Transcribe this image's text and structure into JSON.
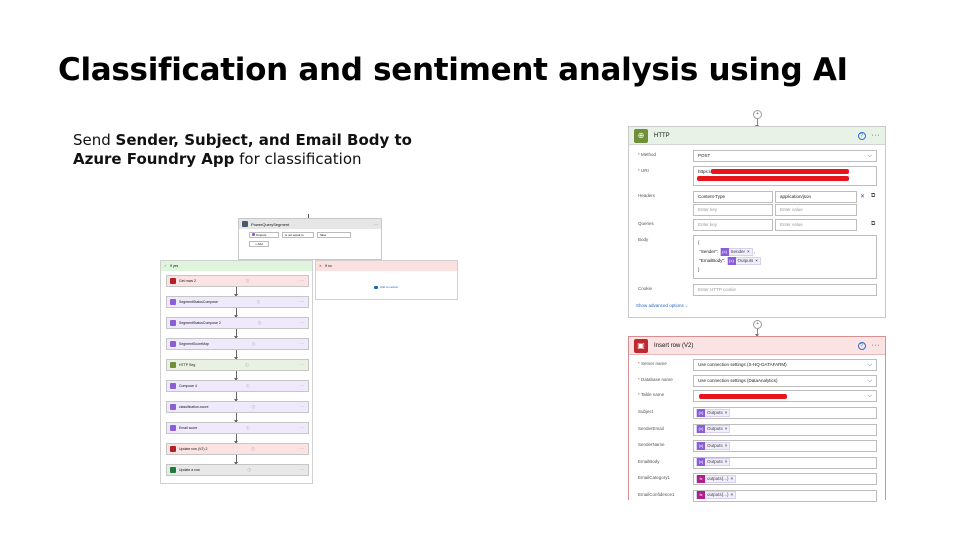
{
  "slide": {
    "title": "Classification and sentiment analysis using AI",
    "subtitle_pre": "Send ",
    "subtitle_bold1": "Sender, Subject, and Email Body to Azure Foundry App",
    "subtitle_post": " for classification"
  },
  "flow": {
    "condition": {
      "title": "PowerQuerySegment",
      "left_value": "Outputs",
      "operator": "is not equal to",
      "right_value": "false",
      "add_label": "+ Add"
    },
    "yes_branch": {
      "label": "If yes"
    },
    "no_branch": {
      "label": "If no",
      "add_action": "Add an action"
    },
    "actions": [
      {
        "label": "Get rows 2",
        "color": "#b3202a",
        "bg": "#fbe3e3"
      },
      {
        "label": "SegmentStatusCompose",
        "color": "#8a5fd6",
        "bg": "#efeafb"
      },
      {
        "label": "SegmentStatusCompose 2",
        "color": "#8a5fd6",
        "bg": "#efeafb"
      },
      {
        "label": "SegmentScoreMap",
        "color": "#8a5fd6",
        "bg": "#efeafb"
      },
      {
        "label": "HTTP Seg",
        "color": "#6f8f3a",
        "bg": "#e9f2e2"
      },
      {
        "label": "Compose 4",
        "color": "#8a5fd6",
        "bg": "#efeafb"
      },
      {
        "label": "classification-score",
        "color": "#8a5fd6",
        "bg": "#efeafb"
      },
      {
        "label": "Email score",
        "color": "#8a5fd6",
        "bg": "#efeafb"
      },
      {
        "label": "Update row (V2) 2",
        "color": "#b3202a",
        "bg": "#fbe3e3"
      },
      {
        "label": "Update a row",
        "color": "#1d7a3a",
        "bg": "#e8e8e8"
      }
    ]
  },
  "http_card": {
    "title": "HTTP",
    "method_label": "Method",
    "method_value": "POST",
    "uri_label": "URI",
    "uri_value": "https://",
    "headers_label": "Headers",
    "header_key": "Content-Type",
    "header_value": "application/json",
    "enter_key": "Enter key",
    "enter_value": "Enter value",
    "queries_label": "Queries",
    "body_label": "Body",
    "body_open": "{",
    "body_sender_key": "\"Sender\":",
    "body_sender_token": "Sender",
    "body_email_key": "\"EmailBody\":",
    "body_email_token": "Outputs",
    "body_close": "}",
    "cookie_label": "Cookie",
    "cookie_placeholder": "Enter HTTP cookie",
    "advanced_link": "Show advanced options"
  },
  "insert_card": {
    "title": "Insert row (V2)",
    "server_label": "Server name",
    "server_value": "Use connection settings (S-HQ-DATAFARM)",
    "database_label": "Database name",
    "database_value": "Use connection settings (DataAnalytics)",
    "table_label": "Table name",
    "fields": [
      {
        "label": "Subject",
        "token": "Outputs",
        "kind": "compose"
      },
      {
        "label": "SenderEmail",
        "token": "Outputs",
        "kind": "compose"
      },
      {
        "label": "SenderName",
        "token": "Outputs",
        "kind": "compose"
      },
      {
        "label": "EmailBody",
        "token": "Outputs",
        "kind": "compose"
      },
      {
        "label": "EmailCategory1",
        "token": "outputs(...)",
        "kind": "expr"
      },
      {
        "label": "EmailConfidence1",
        "token": "outputs(...)",
        "kind": "expr"
      }
    ]
  },
  "colors": {
    "http_icon": "#6f8f3a",
    "sql_icon": "#c0282f",
    "compose_token": "#8a5fd6",
    "expr_token": "#b0208a",
    "redaction": "#e8141c"
  }
}
